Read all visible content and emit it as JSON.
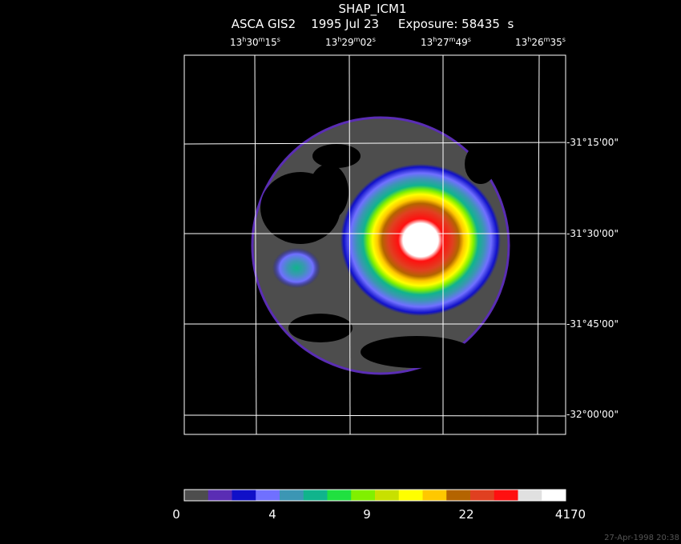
{
  "header": {
    "title": "SHAP_ICM1",
    "subtitle": "ASCA GIS2    1995 Jul 23     Exposure: 58435  s"
  },
  "axes": {
    "ra_labels": [
      {
        "h": "13",
        "m": "30",
        "s": "15"
      },
      {
        "h": "13",
        "m": "29",
        "s": "02"
      },
      {
        "h": "13",
        "m": "27",
        "s": "49"
      },
      {
        "h": "13",
        "m": "26",
        "s": "35"
      }
    ],
    "dec_labels": [
      "-31°15'00\"",
      "-31°30'00\"",
      "-31°45'00\"",
      "-32°00'00\""
    ]
  },
  "colorbar": {
    "colors": [
      "#4d4d4d",
      "#5a2db4",
      "#1010c8",
      "#7070ff",
      "#3c96b4",
      "#10b48c",
      "#20e040",
      "#80f000",
      "#c8e000",
      "#ffff00",
      "#ffc800",
      "#b46400",
      "#e04020",
      "#ff1010",
      "#e0e0e0",
      "#ffffff"
    ],
    "ticks": [
      "0",
      "4",
      "9",
      "22",
      "4170"
    ]
  },
  "image_colors": {
    "background": "#000000",
    "field": "#4d4d4d",
    "grid": "#ffffff"
  },
  "footer": {
    "timestamp": "27-Apr-1998 20:38"
  }
}
